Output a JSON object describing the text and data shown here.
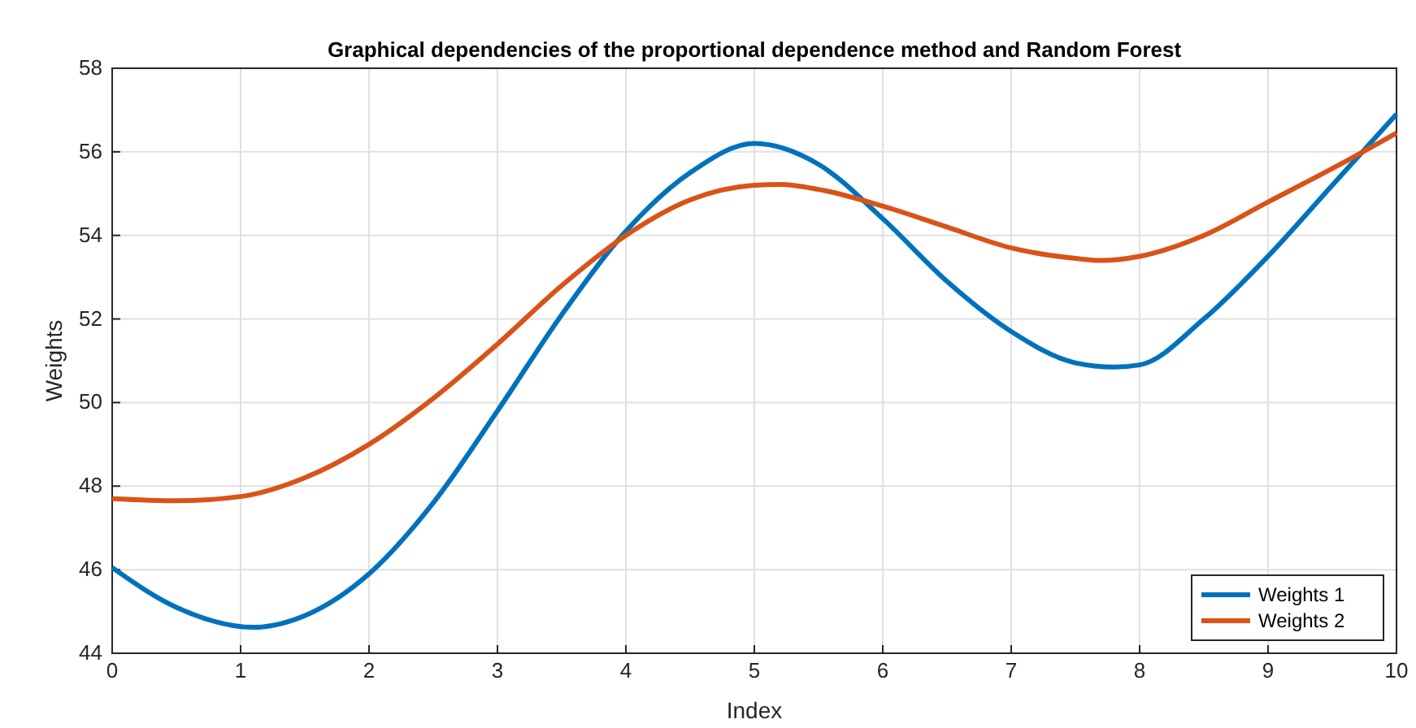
{
  "chart_data": {
    "type": "line",
    "title": "Graphical dependencies of the proportional dependence method and Random Forest",
    "xlabel": "Index",
    "ylabel": "Weights",
    "xlim": [
      0,
      10
    ],
    "xticks": [
      0,
      1,
      2,
      3,
      4,
      5,
      6,
      7,
      8,
      9,
      10
    ],
    "ylim": [
      44,
      58
    ],
    "yticks": [
      44,
      46,
      48,
      50,
      52,
      54,
      56,
      58
    ],
    "grid": true,
    "legend": "bottom right",
    "series": [
      {
        "name": "Weights 1",
        "color": "#0072bd",
        "x": [
          0,
          0.5,
          1.1,
          1.5,
          2,
          2.5,
          3,
          3.5,
          4,
          4.5,
          5,
          5.5,
          6,
          6.5,
          7,
          7.5,
          7.8,
          8,
          8.5,
          9,
          9.5,
          10
        ],
        "values": [
          46.05,
          45.1,
          44.62,
          44.9,
          45.9,
          47.6,
          49.8,
          52.1,
          54.1,
          55.5,
          56.2,
          55.7,
          54.4,
          52.9,
          51.7,
          50.95,
          50.85,
          50.9,
          52.0,
          53.5,
          55.2,
          56.9
        ]
      },
      {
        "name": "Weights 2",
        "color": "#d95319",
        "x": [
          0,
          0.5,
          1,
          1.5,
          2,
          2.5,
          3,
          3.5,
          4,
          4.5,
          5,
          5.2,
          5.5,
          6,
          6.5,
          7,
          7.5,
          7.7,
          8,
          8.5,
          9,
          9.5,
          10
        ],
        "values": [
          47.7,
          47.65,
          47.75,
          48.2,
          49.0,
          50.1,
          51.4,
          52.8,
          54.0,
          54.85,
          55.2,
          55.22,
          55.1,
          54.7,
          54.2,
          53.7,
          53.45,
          53.4,
          53.5,
          54.0,
          54.8,
          55.6,
          56.45
        ]
      }
    ]
  }
}
